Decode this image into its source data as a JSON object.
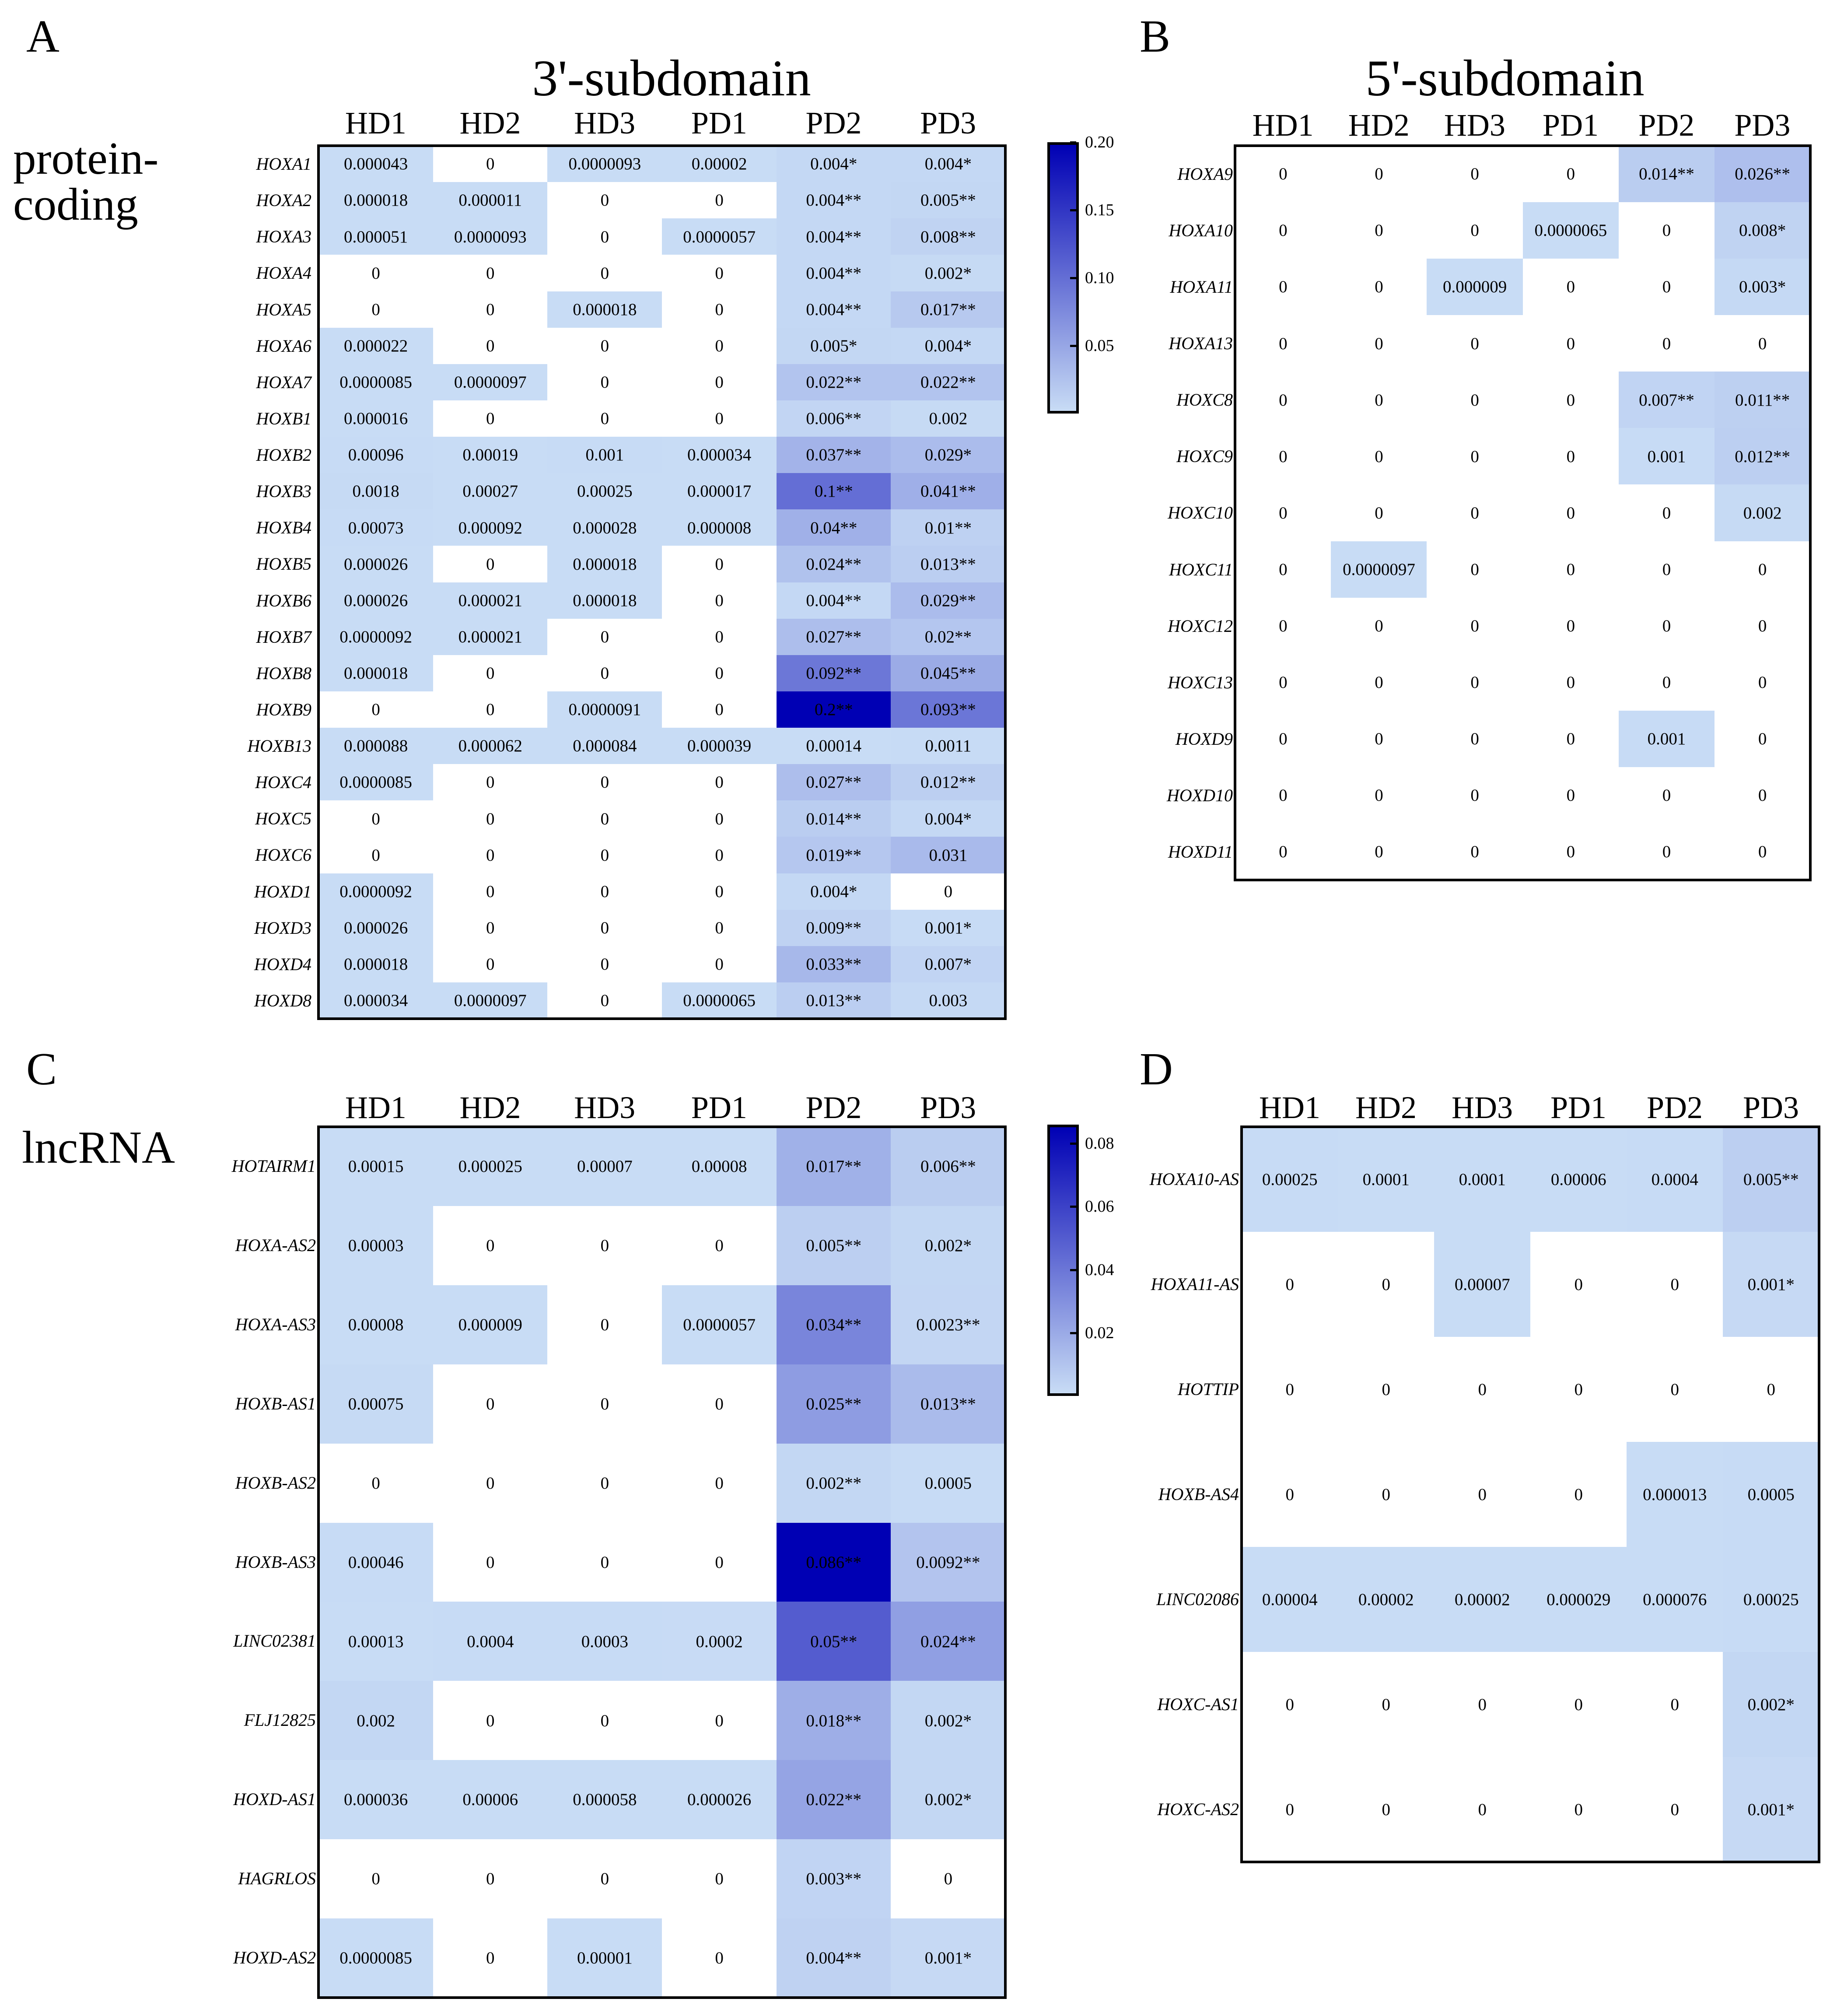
{
  "chart_data": [
    {
      "type": "heatmap",
      "panel_label": "A",
      "title": "3'-subdomain",
      "side_label": [
        "protein-",
        "coding"
      ],
      "columns": [
        "HD1",
        "HD2",
        "HD3",
        "PD1",
        "PD2",
        "PD3"
      ],
      "colorbar": {
        "min": 0,
        "max": 0.2,
        "ticks": [
          "0.20",
          "0.15",
          "0.10",
          "0.05"
        ],
        "tick_values": [
          0.2,
          0.15,
          0.1,
          0.05
        ]
      },
      "rows": [
        {
          "label": "HOXA1",
          "cells": [
            "0.000043",
            "0",
            "0.0000093",
            "0.00002",
            "0.004*",
            "0.004*"
          ]
        },
        {
          "label": "HOXA2",
          "cells": [
            "0.000018",
            "0.000011",
            "0",
            "0",
            "0.004**",
            "0.005**"
          ]
        },
        {
          "label": "HOXA3",
          "cells": [
            "0.000051",
            "0.0000093",
            "0",
            "0.0000057",
            "0.004**",
            "0.008**"
          ]
        },
        {
          "label": "HOXA4",
          "cells": [
            "0",
            "0",
            "0",
            "0",
            "0.004**",
            "0.002*"
          ]
        },
        {
          "label": "HOXA5",
          "cells": [
            "0",
            "0",
            "0.000018",
            "0",
            "0.004**",
            "0.017**"
          ]
        },
        {
          "label": "HOXA6",
          "cells": [
            "0.000022",
            "0",
            "0",
            "0",
            "0.005*",
            "0.004*"
          ]
        },
        {
          "label": "HOXA7",
          "cells": [
            "0.0000085",
            "0.0000097",
            "0",
            "0",
            "0.022**",
            "0.022**"
          ]
        },
        {
          "label": "HOXB1",
          "cells": [
            "0.000016",
            "0",
            "0",
            "0",
            "0.006**",
            "0.002"
          ]
        },
        {
          "label": "HOXB2",
          "cells": [
            "0.00096",
            "0.00019",
            "0.001",
            "0.000034",
            "0.037**",
            "0.029*"
          ]
        },
        {
          "label": "HOXB3",
          "cells": [
            "0.0018",
            "0.00027",
            "0.00025",
            "0.000017",
            "0.1**",
            "0.041**"
          ]
        },
        {
          "label": "HOXB4",
          "cells": [
            "0.00073",
            "0.000092",
            "0.000028",
            "0.000008",
            "0.04**",
            "0.01**"
          ]
        },
        {
          "label": "HOXB5",
          "cells": [
            "0.000026",
            "0",
            "0.000018",
            "0",
            "0.024**",
            "0.013**"
          ]
        },
        {
          "label": "HOXB6",
          "cells": [
            "0.000026",
            "0.000021",
            "0.000018",
            "0",
            "0.004**",
            "0.029**"
          ]
        },
        {
          "label": "HOXB7",
          "cells": [
            "0.0000092",
            "0.000021",
            "0",
            "0",
            "0.027**",
            "0.02**"
          ]
        },
        {
          "label": "HOXB8",
          "cells": [
            "0.000018",
            "0",
            "0",
            "0",
            "0.092**",
            "0.045**"
          ]
        },
        {
          "label": "HOXB9",
          "cells": [
            "0",
            "0",
            "0.0000091",
            "0",
            "0.2**",
            "0.093**"
          ]
        },
        {
          "label": "HOXB13",
          "cells": [
            "0.000088",
            "0.000062",
            "0.000084",
            "0.000039",
            "0.00014",
            "0.0011"
          ]
        },
        {
          "label": "HOXC4",
          "cells": [
            "0.0000085",
            "0",
            "0",
            "0",
            "0.027**",
            "0.012**"
          ]
        },
        {
          "label": "HOXC5",
          "cells": [
            "0",
            "0",
            "0",
            "0",
            "0.014**",
            "0.004*"
          ]
        },
        {
          "label": "HOXC6",
          "cells": [
            "0",
            "0",
            "0",
            "0",
            "0.019**",
            "0.031"
          ]
        },
        {
          "label": "HOXD1",
          "cells": [
            "0.0000092",
            "0",
            "0",
            "0",
            "0.004*",
            "0"
          ]
        },
        {
          "label": "HOXD3",
          "cells": [
            "0.000026",
            "0",
            "0",
            "0",
            "0.009**",
            "0.001*"
          ]
        },
        {
          "label": "HOXD4",
          "cells": [
            "0.000018",
            "0",
            "0",
            "0",
            "0.033**",
            "0.007*"
          ]
        },
        {
          "label": "HOXD8",
          "cells": [
            "0.000034",
            "0.0000097",
            "0",
            "0.0000065",
            "0.013**",
            "0.003"
          ]
        }
      ]
    },
    {
      "type": "heatmap",
      "panel_label": "B",
      "title": "5'-subdomain",
      "columns": [
        "HD1",
        "HD2",
        "HD3",
        "PD1",
        "PD2",
        "PD3"
      ],
      "colorbar_ref": "A",
      "rows": [
        {
          "label": "HOXA9",
          "cells": [
            "0",
            "0",
            "0",
            "0",
            "0.014**",
            "0.026**"
          ]
        },
        {
          "label": "HOXA10",
          "cells": [
            "0",
            "0",
            "0",
            "0.0000065",
            "0",
            "0.008*"
          ]
        },
        {
          "label": "HOXA11",
          "cells": [
            "0",
            "0",
            "0.000009",
            "0",
            "0",
            "0.003*"
          ]
        },
        {
          "label": "HOXA13",
          "cells": [
            "0",
            "0",
            "0",
            "0",
            "0",
            "0"
          ]
        },
        {
          "label": "HOXC8",
          "cells": [
            "0",
            "0",
            "0",
            "0",
            "0.007**",
            "0.011**"
          ]
        },
        {
          "label": "HOXC9",
          "cells": [
            "0",
            "0",
            "0",
            "0",
            "0.001",
            "0.012**"
          ]
        },
        {
          "label": "HOXC10",
          "cells": [
            "0",
            "0",
            "0",
            "0",
            "0",
            "0.002"
          ]
        },
        {
          "label": "HOXC11",
          "cells": [
            "0",
            "0.0000097",
            "0",
            "0",
            "0",
            "0"
          ]
        },
        {
          "label": "HOXC12",
          "cells": [
            "0",
            "0",
            "0",
            "0",
            "0",
            "0"
          ]
        },
        {
          "label": "HOXC13",
          "cells": [
            "0",
            "0",
            "0",
            "0",
            "0",
            "0"
          ]
        },
        {
          "label": "HOXD9",
          "cells": [
            "0",
            "0",
            "0",
            "0",
            "0.001",
            "0"
          ]
        },
        {
          "label": "HOXD10",
          "cells": [
            "0",
            "0",
            "0",
            "0",
            "0",
            "0"
          ]
        },
        {
          "label": "HOXD11",
          "cells": [
            "0",
            "0",
            "0",
            "0",
            "0",
            "0"
          ]
        }
      ]
    },
    {
      "type": "heatmap",
      "panel_label": "C",
      "side_label": [
        "lncRNA"
      ],
      "columns": [
        "HD1",
        "HD2",
        "HD3",
        "PD1",
        "PD2",
        "PD3"
      ],
      "colorbar": {
        "min": 0,
        "max": 0.086,
        "ticks": [
          "0.08",
          "0.06",
          "0.04",
          "0.02"
        ],
        "tick_values": [
          0.08,
          0.06,
          0.04,
          0.02
        ]
      },
      "rows": [
        {
          "label": "HOTAIRM1",
          "cells": [
            "0.00015",
            "0.000025",
            "0.00007",
            "0.00008",
            "0.017**",
            "0.006**"
          ]
        },
        {
          "label": "HOXA-AS2",
          "cells": [
            "0.00003",
            "0",
            "0",
            "0",
            "0.005**",
            "0.002*"
          ]
        },
        {
          "label": "HOXA-AS3",
          "cells": [
            "0.00008",
            "0.000009",
            "0",
            "0.0000057",
            "0.034**",
            "0.0023**"
          ]
        },
        {
          "label": "HOXB-AS1",
          "cells": [
            "0.00075",
            "0",
            "0",
            "0",
            "0.025**",
            "0.013**"
          ]
        },
        {
          "label": "HOXB-AS2",
          "cells": [
            "0",
            "0",
            "0",
            "0",
            "0.002**",
            "0.0005"
          ]
        },
        {
          "label": "HOXB-AS3",
          "cells": [
            "0.00046",
            "0",
            "0",
            "0",
            "0.086**",
            "0.0092**"
          ]
        },
        {
          "label": "LINC02381",
          "cells": [
            "0.00013",
            "0.0004",
            "0.0003",
            "0.0002",
            "0.05**",
            "0.024**"
          ]
        },
        {
          "label": "FLJ12825",
          "cells": [
            "0.002",
            "0",
            "0",
            "0",
            "0.018**",
            "0.002*"
          ]
        },
        {
          "label": "HOXD-AS1",
          "cells": [
            "0.000036",
            "0.00006",
            "0.000058",
            "0.000026",
            "0.022**",
            "0.002*"
          ]
        },
        {
          "label": "HAGRLOS",
          "cells": [
            "0",
            "0",
            "0",
            "0",
            "0.003**",
            "0"
          ]
        },
        {
          "label": "HOXD-AS2",
          "cells": [
            "0.0000085",
            "0",
            "0.00001",
            "0",
            "0.004**",
            "0.001*"
          ]
        }
      ]
    },
    {
      "type": "heatmap",
      "panel_label": "D",
      "columns": [
        "HD1",
        "HD2",
        "HD3",
        "PD1",
        "PD2",
        "PD3"
      ],
      "colorbar_ref": "C",
      "rows": [
        {
          "label": "HOXA10-AS",
          "cells": [
            "0.00025",
            "0.0001",
            "0.0001",
            "0.00006",
            "0.0004",
            "0.005**"
          ]
        },
        {
          "label": "HOXA11-AS",
          "cells": [
            "0",
            "0",
            "0.00007",
            "0",
            "0",
            "0.001*"
          ]
        },
        {
          "label": "HOTTIP",
          "cells": [
            "0",
            "0",
            "0",
            "0",
            "0",
            "0"
          ]
        },
        {
          "label": "HOXB-AS4",
          "cells": [
            "0",
            "0",
            "0",
            "0",
            "0.000013",
            "0.0005"
          ]
        },
        {
          "label": "LINC02086",
          "cells": [
            "0.00004",
            "0.00002",
            "0.00002",
            "0.000029",
            "0.000076",
            "0.00025"
          ]
        },
        {
          "label": "HOXC-AS1",
          "cells": [
            "0",
            "0",
            "0",
            "0",
            "0",
            "0.002*"
          ]
        },
        {
          "label": "HOXC-AS2",
          "cells": [
            "0",
            "0",
            "0",
            "0",
            "0",
            "0.001*"
          ]
        }
      ]
    }
  ],
  "colors": {
    "low": "#c8dcf5",
    "high": "#0000b4",
    "zero": "#ffffff",
    "frame": "#000000"
  }
}
